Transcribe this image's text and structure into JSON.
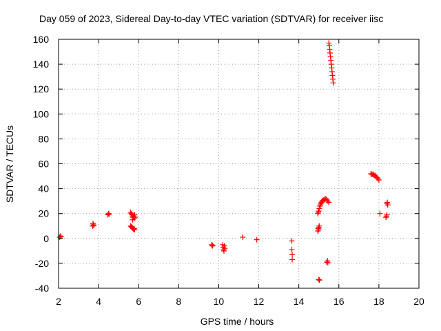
{
  "chart_data": {
    "type": "scatter",
    "title": "Day 059 of 2023, Sidereal Day-to-day VTEC variation (SDTVAR) for receiver iisc",
    "xlabel": "GPS time / hours",
    "ylabel": "SDTVAR / TECUs",
    "xlim": [
      2,
      20
    ],
    "ylim": [
      -40,
      160
    ],
    "xticks": [
      "2",
      "4",
      "6",
      "8",
      "10",
      "12",
      "14",
      "16",
      "18",
      "20"
    ],
    "yticks": [
      "-40",
      "-20",
      "0",
      "20",
      "40",
      "60",
      "80",
      "100",
      "120",
      "140",
      "160"
    ],
    "grid": true,
    "marker": "+",
    "color": "#ff0000",
    "series": [
      {
        "name": "iisc",
        "points": [
          [
            2.05,
            1
          ],
          [
            2.1,
            2
          ],
          [
            2.12,
            1.5
          ],
          [
            3.7,
            10
          ],
          [
            3.72,
            12
          ],
          [
            3.74,
            11
          ],
          [
            3.76,
            10.5
          ],
          [
            4.45,
            19
          ],
          [
            4.5,
            20
          ],
          [
            4.52,
            19.5
          ],
          [
            5.6,
            21
          ],
          [
            5.63,
            20
          ],
          [
            5.66,
            19
          ],
          [
            5.69,
            18
          ],
          [
            5.72,
            17
          ],
          [
            5.75,
            18
          ],
          [
            5.78,
            16
          ],
          [
            5.8,
            19
          ],
          [
            5.82,
            17
          ],
          [
            5.7,
            15
          ],
          [
            5.6,
            10
          ],
          [
            5.63,
            9.5
          ],
          [
            5.66,
            9
          ],
          [
            5.69,
            8.5
          ],
          [
            5.72,
            8
          ],
          [
            5.75,
            7.5
          ],
          [
            5.78,
            8
          ],
          [
            5.8,
            7
          ],
          [
            9.65,
            -5
          ],
          [
            9.68,
            -6
          ],
          [
            9.7,
            -5.5
          ],
          [
            10.2,
            -5
          ],
          [
            10.22,
            -7
          ],
          [
            10.24,
            -9
          ],
          [
            10.26,
            -10
          ],
          [
            10.28,
            -6
          ],
          [
            10.3,
            -8
          ],
          [
            11.2,
            1
          ],
          [
            11.9,
            -1
          ],
          [
            13.65,
            -2
          ],
          [
            13.65,
            -9
          ],
          [
            13.67,
            -13
          ],
          [
            13.67,
            -17
          ],
          [
            14.95,
            6
          ],
          [
            14.97,
            8
          ],
          [
            14.99,
            7
          ],
          [
            15.0,
            9
          ],
          [
            15.02,
            10
          ],
          [
            14.95,
            20
          ],
          [
            14.97,
            21
          ],
          [
            14.99,
            22
          ],
          [
            15.02,
            24
          ],
          [
            15.05,
            26
          ],
          [
            15.08,
            27
          ],
          [
            15.1,
            28
          ],
          [
            15.13,
            29
          ],
          [
            15.16,
            30
          ],
          [
            15.2,
            30.5
          ],
          [
            15.25,
            31
          ],
          [
            15.3,
            31.5
          ],
          [
            15.35,
            32
          ],
          [
            15.4,
            31
          ],
          [
            15.45,
            30
          ],
          [
            15.5,
            29
          ],
          [
            15.4,
            -19
          ],
          [
            15.43,
            -18
          ],
          [
            15.45,
            -19.5
          ],
          [
            15.0,
            -33
          ],
          [
            15.03,
            -33.5
          ],
          [
            15.5,
            157
          ],
          [
            15.52,
            155
          ],
          [
            15.54,
            152
          ],
          [
            15.56,
            149
          ],
          [
            15.58,
            146
          ],
          [
            15.6,
            143
          ],
          [
            15.62,
            140
          ],
          [
            15.64,
            137
          ],
          [
            15.66,
            134
          ],
          [
            15.68,
            131
          ],
          [
            15.7,
            128
          ],
          [
            15.72,
            125
          ],
          [
            17.6,
            52
          ],
          [
            17.65,
            51.5
          ],
          [
            17.7,
            51.5
          ],
          [
            17.75,
            51
          ],
          [
            17.8,
            50.5
          ],
          [
            17.85,
            50
          ],
          [
            17.9,
            49
          ],
          [
            17.95,
            48
          ],
          [
            18.0,
            47
          ],
          [
            18.05,
            20
          ],
          [
            18.4,
            28
          ],
          [
            18.42,
            29
          ],
          [
            18.44,
            27
          ],
          [
            18.35,
            17
          ],
          [
            18.38,
            18
          ],
          [
            18.4,
            19
          ]
        ]
      }
    ]
  }
}
